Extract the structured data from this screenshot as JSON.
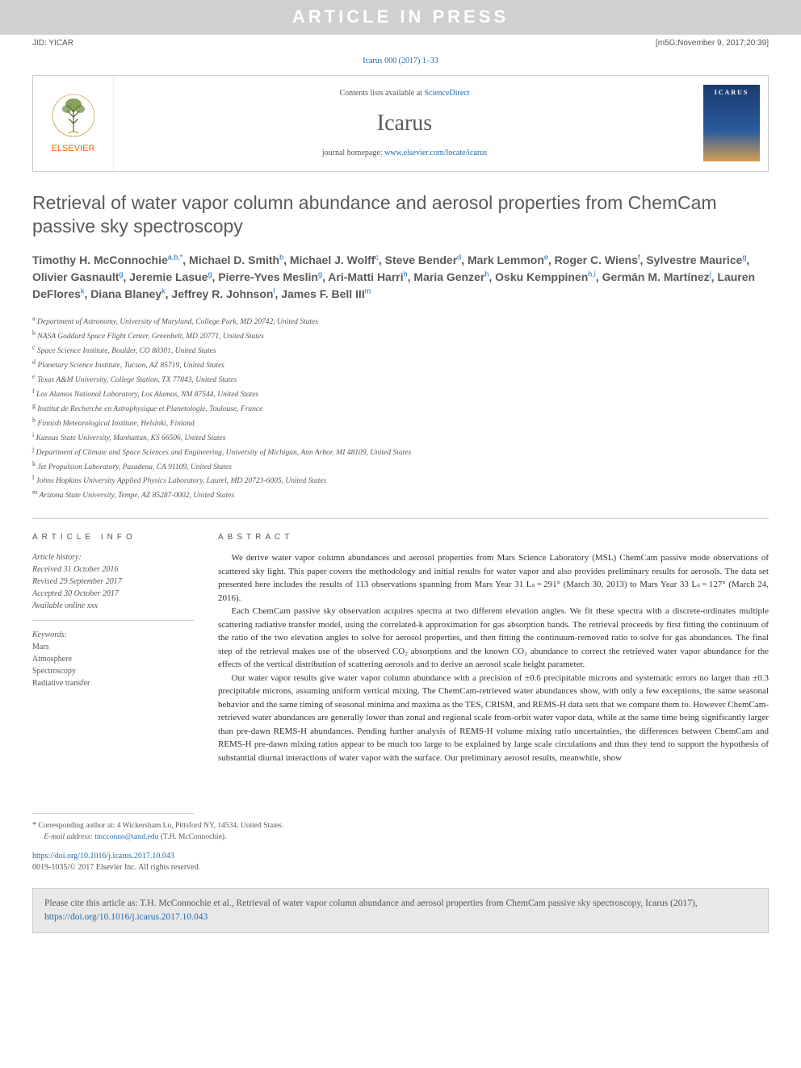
{
  "banner": {
    "text": "ARTICLE IN PRESS"
  },
  "meta_bar": {
    "left": "JID: YICAR",
    "right": "[m5G;November 9, 2017;20:39]"
  },
  "citation_line": "Icarus 000 (2017) 1–33",
  "journal_header": {
    "publisher_name": "ELSEVIER",
    "contents_prefix": "Contents lists available at ",
    "contents_link": "ScienceDirect",
    "journal_name": "Icarus",
    "homepage_prefix": "journal homepage: ",
    "homepage_link": "www.elsevier.com/locate/icarus",
    "cover_title": "ICARUS"
  },
  "title": "Retrieval of water vapor column abundance and aerosol properties from ChemCam passive sky spectroscopy",
  "authors_html": "Timothy H. McConnochie<sup>a,b,*</sup>, Michael D. Smith<sup>b</sup>, Michael J. Wolff<sup>c</sup>, Steve Bender<sup>d</sup>, Mark Lemmon<sup>e</sup>, Roger C. Wiens<sup>f</sup>, Sylvestre Maurice<sup>g</sup>, Olivier Gasnault<sup>g</sup>, Jeremie Lasue<sup>g</sup>, Pierre-Yves Meslin<sup>g</sup>, Ari-Matti Harri<sup>h</sup>, Maria Genzer<sup>h</sup>, Osku Kemppinen<sup>h,i</sup>, Germán M. Martínez<sup>j</sup>, Lauren DeFlores<sup>k</sup>, Diana Blaney<sup>k</sup>, Jeffrey R. Johnson<sup>l</sup>, James F. Bell III<sup>m</sup>",
  "affiliations": [
    {
      "sup": "a",
      "text": "Department of Astronomy, University of Maryland, College Park, MD 20742, United States"
    },
    {
      "sup": "b",
      "text": "NASA Goddard Space Flight Center, Greenbelt, MD 20771, United States"
    },
    {
      "sup": "c",
      "text": "Space Science Institute, Boulder, CO 80301, United States"
    },
    {
      "sup": "d",
      "text": "Planetary Science Institute, Tucson, AZ 85719, United States"
    },
    {
      "sup": "e",
      "text": "Texas A&M University, College Station, TX 77843, United States"
    },
    {
      "sup": "f",
      "text": "Los Alamos National Laboratory, Los Alamos, NM 87544, United States"
    },
    {
      "sup": "g",
      "text": "Institut de Recherche en Astrophysique et Planetologie, Toulouse, France"
    },
    {
      "sup": "h",
      "text": "Finnish Meteorological Institute, Helsinki, Finland"
    },
    {
      "sup": "i",
      "text": "Kansas State University, Manhattan, KS 66506, United States"
    },
    {
      "sup": "j",
      "text": "Department of Climate and Space Sciences and Engineering, University of Michigan, Ann Arbor, MI 48109, United States"
    },
    {
      "sup": "k",
      "text": "Jet Propulsion Laboratory, Pasadena, CA 91109, United States"
    },
    {
      "sup": "l",
      "text": "Johns Hopkins University Applied Physics Laboratory, Laurel, MD 20723-6005, United States"
    },
    {
      "sup": "m",
      "text": "Arizona State University, Tempe, AZ 85287-0002, United States"
    }
  ],
  "article_info": {
    "label": "ARTICLE INFO",
    "history_title": "Article history:",
    "history": [
      "Received 31 October 2016",
      "Revised 29 September 2017",
      "Accepted 30 October 2017",
      "Available online xxx"
    ],
    "keywords_title": "Keywords:",
    "keywords": [
      "Mars",
      "Atmosphere",
      "Spectroscopy",
      "Radiative transfer"
    ]
  },
  "abstract": {
    "label": "ABSTRACT",
    "paragraphs": [
      "We derive water vapor column abundances and aerosol properties from Mars Science Laboratory (MSL) ChemCam passive mode observations of scattered sky light. This paper covers the methodology and initial results for water vapor and also provides preliminary results for aerosols. The data set presented here includes the results of 113 observations spanning from Mars Year 31 Lₛ = 291° (March 30, 2013) to Mars Year 33 Lₛ = 127° (March 24, 2016).",
      "Each ChemCam passive sky observation acquires spectra at two different elevation angles. We fit these spectra with a discrete-ordinates multiple scattering radiative transfer model, using the correlated-k approximation for gas absorption bands. The retrieval proceeds by first fitting the continuum of the ratio of the two elevation angles to solve for aerosol properties, and then fitting the continuum-removed ratio to solve for gas abundances. The final step of the retrieval makes use of the observed CO₂ absorptions and the known CO₂ abundance to correct the retrieved water vapor abundance for the effects of the vertical distribution of scattering aerosols and to derive an aerosol scale height parameter.",
      "Our water vapor results give water vapor column abundance with a precision of ±0.6 precipitable microns and systematic errors no larger than ±0.3 precipitable microns, assuming uniform vertical mixing. The ChemCam-retrieved water abundances show, with only a few exceptions, the same seasonal behavior and the same timing of seasonal minima and maxima as the TES, CRISM, and REMS-H data sets that we compare them to. However ChemCam-retrieved water abundances are generally lower than zonal and regional scale from-orbit water vapor data, while at the same time being significantly larger than pre-dawn REMS-H abundances. Pending further analysis of REMS-H volume mixing ratio uncertainties, the differences between ChemCam and REMS-H pre-dawn mixing ratios appear to be much too large to be explained by large scale circulations and thus they tend to support the hypothesis of substantial diurnal interactions of water vapor with the surface. Our preliminary aerosol results, meanwhile, show"
    ]
  },
  "footnotes": {
    "corr_star": "*",
    "corr_text": " Corresponding author at: 4 Wickersham Ln, Pittsford NY, 14534, United States.",
    "email_label": "E-mail address: ",
    "email": "tmcconno@umd.edu",
    "email_suffix": " (T.H. McConnochie)."
  },
  "doi": {
    "link": "https://doi.org/10.1016/j.icarus.2017.10.043",
    "copyright": "0019-1035/© 2017 Elsevier Inc. All rights reserved."
  },
  "cite_box": {
    "prefix": "Please cite this article as: T.H. McConnochie et al., Retrieval of water vapor column abundance and aerosol properties from ChemCam passive sky spectroscopy, Icarus (2017), ",
    "link": "https://doi.org/10.1016/j.icarus.2017.10.043"
  },
  "colors": {
    "link": "#1a6bb3",
    "banner_bg": "#d0d0d0",
    "banner_text": "#ffffff",
    "orange": "#ff6600",
    "cite_bg": "#e8e8e8"
  }
}
